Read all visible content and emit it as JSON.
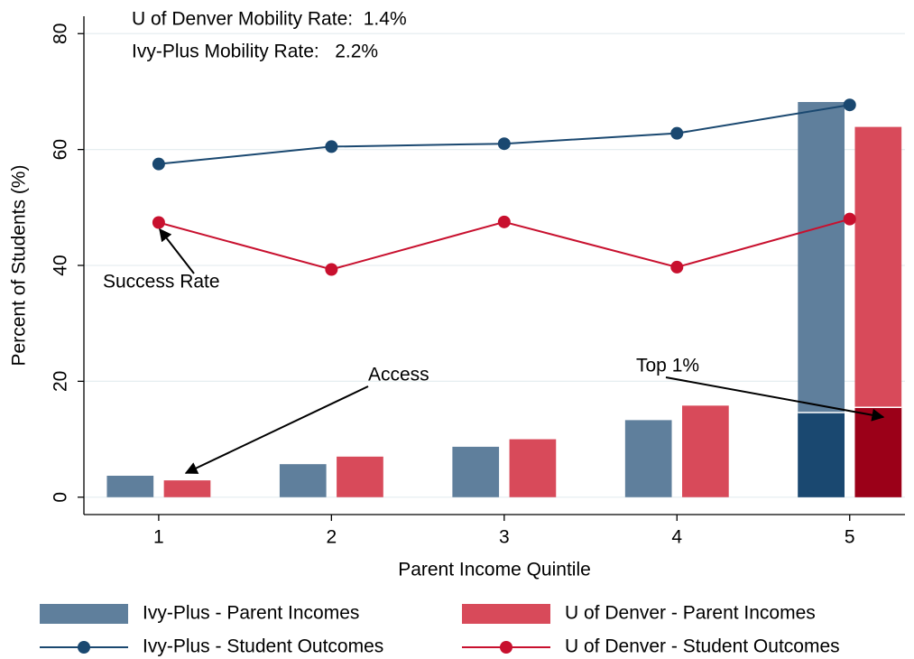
{
  "chart_data": {
    "type": "bar",
    "x_label": "Parent Income Quintile",
    "y_label": "Percent of Students (%)",
    "annotations": [
      "U of Denver Mobility Rate:  1.4%",
      "Ivy-Plus Mobility Rate:   2.2%",
      "Success Rate",
      "Access",
      "Top 1%"
    ],
    "x": [
      1,
      2,
      3,
      4,
      5
    ],
    "xlim": [
      0.567,
      5.32
    ],
    "xticks": [
      1,
      2,
      3,
      4,
      5
    ],
    "ylim": [
      -3,
      83
    ],
    "yticks": [
      0,
      20,
      40,
      60,
      80
    ],
    "grid": true,
    "series": [
      {
        "name": "Ivy-Plus - Parent Incomes",
        "type": "bar",
        "color": "#5f7f9c",
        "values": [
          3.7,
          5.7,
          8.7,
          13.3,
          68.2
        ],
        "top_1_percent": [
          null,
          null,
          null,
          null,
          14.6
        ],
        "top_1_percent_color": "#1a4870"
      },
      {
        "name": "U of Denver - Parent Incomes",
        "type": "bar",
        "color": "#d84a5a",
        "values": [
          2.9,
          7.0,
          10.0,
          15.8,
          63.9
        ],
        "top_1_percent": [
          null,
          null,
          null,
          null,
          15.5
        ],
        "top_1_percent_color": "#9b0018"
      },
      {
        "name": "Ivy-Plus - Student Outcomes",
        "type": "line",
        "color": "#1a4870",
        "values": [
          57.5,
          60.5,
          61.0,
          62.8,
          67.7
        ]
      },
      {
        "name": "U of Denver - Student Outcomes",
        "type": "line",
        "color": "#c8102e",
        "values": [
          47.4,
          39.3,
          47.5,
          39.7,
          48.0
        ]
      }
    ]
  }
}
